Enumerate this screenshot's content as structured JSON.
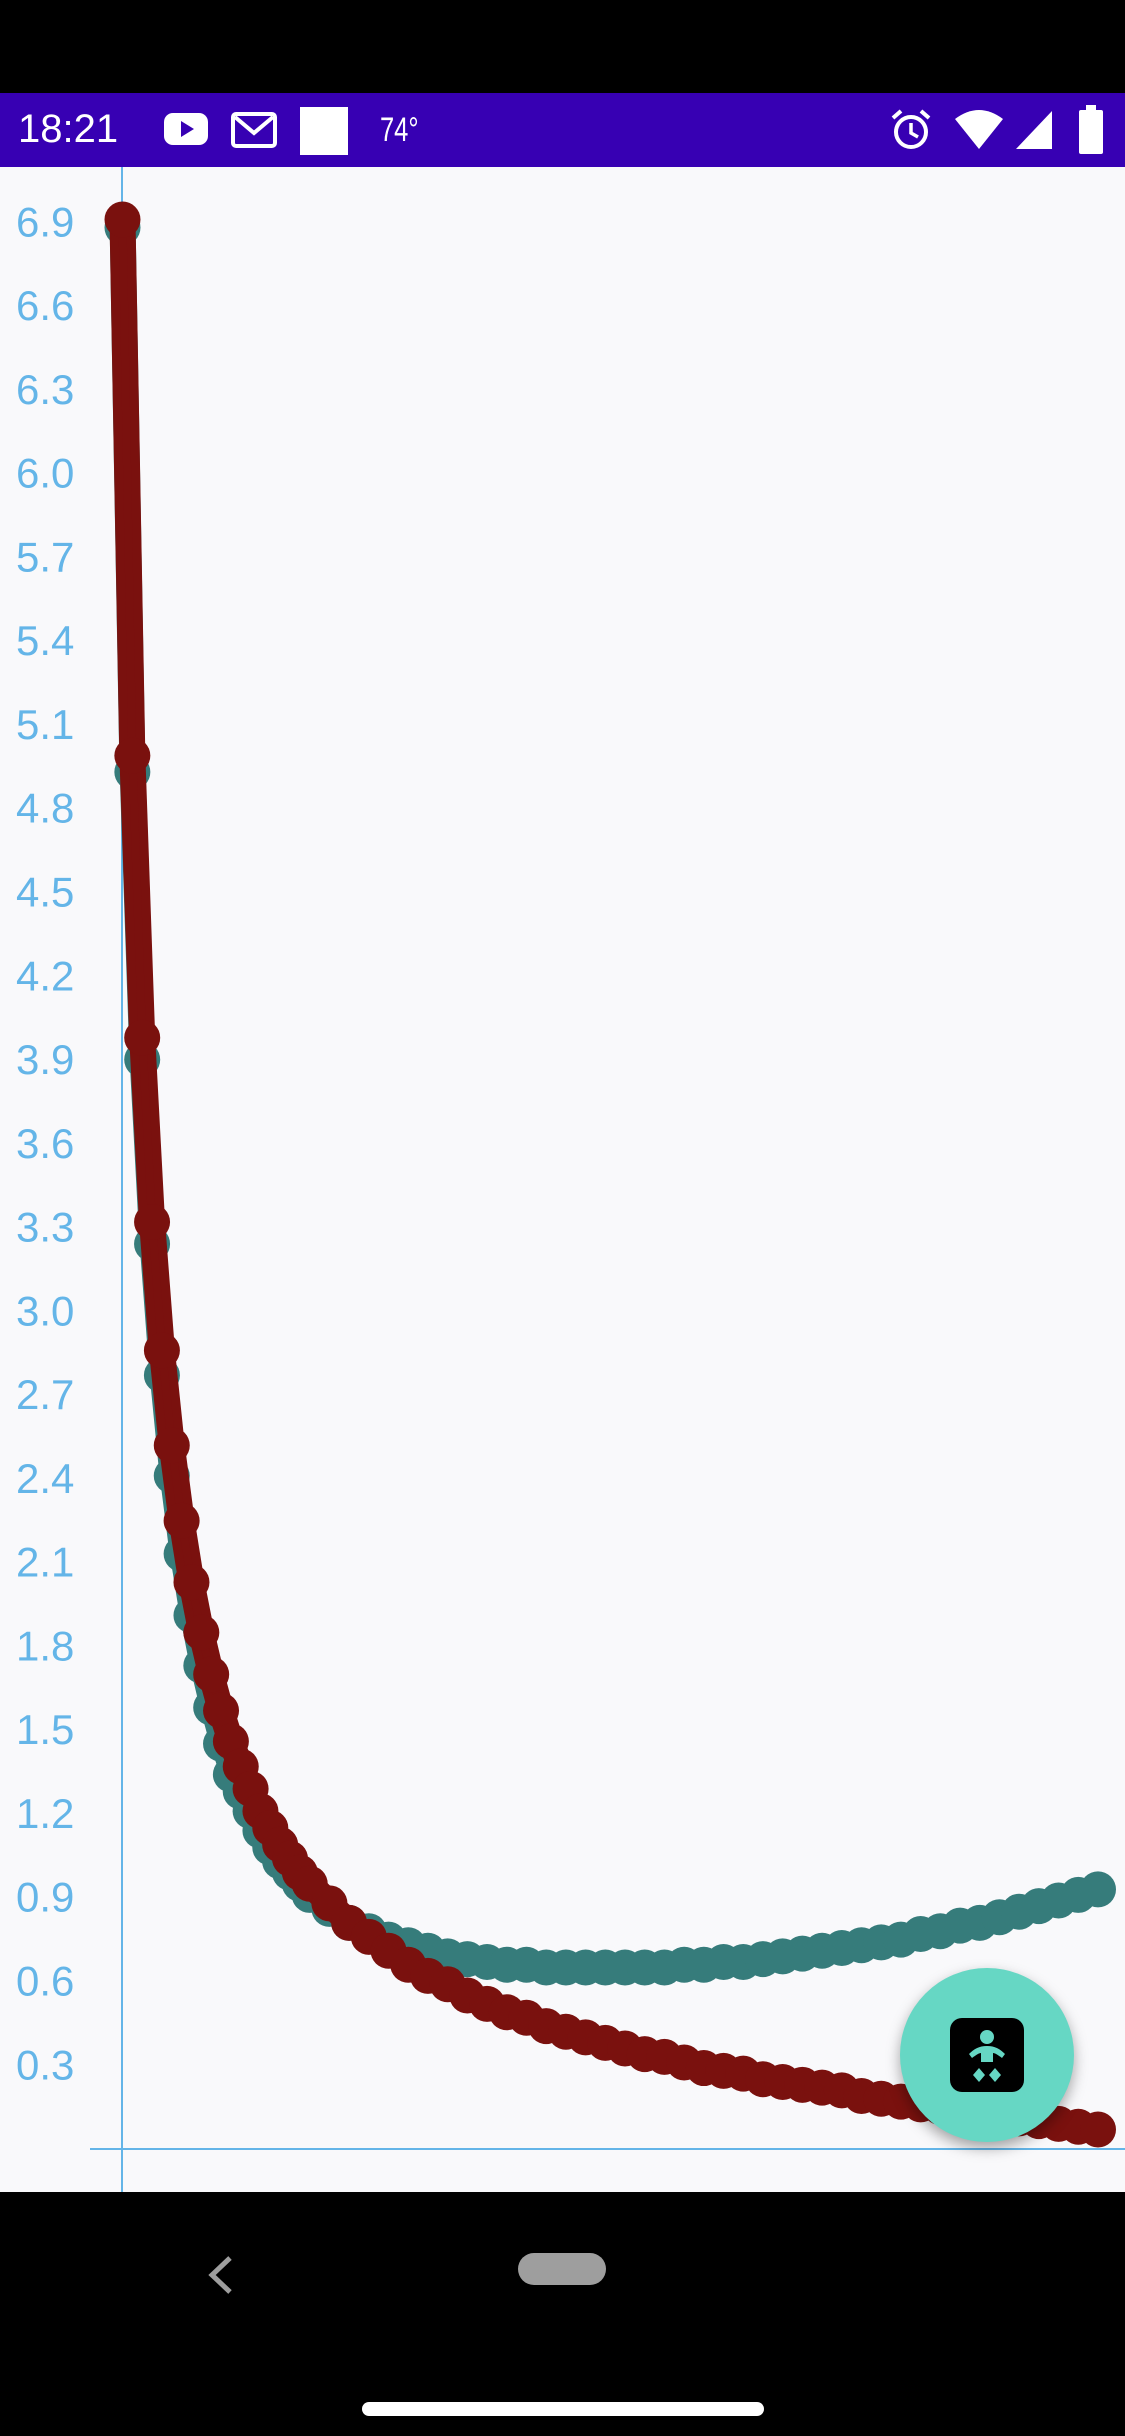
{
  "status_bar": {
    "time": "18:21",
    "temperature": "74°",
    "background": "#3700b3",
    "left_icons": [
      "youtube-icon",
      "gmail-icon",
      "white-square-icon"
    ],
    "right_icons": [
      "alarm-icon",
      "wifi-icon",
      "signal-icon",
      "battery-icon"
    ]
  },
  "fab": {
    "icon": "baby-icon",
    "color": "#66d7c4"
  },
  "navigation": {
    "icons": [
      "back-icon",
      "home-pill-icon",
      "gesture-handle-icon"
    ]
  },
  "chart_data": {
    "type": "scatter",
    "title": "",
    "xlabel": "",
    "ylabel": "",
    "y_ticks": [
      "0.3",
      "0.6",
      "0.9",
      "1.2",
      "1.5",
      "1.8",
      "2.1",
      "2.4",
      "2.7",
      "3.0",
      "3.3",
      "3.6",
      "3.9",
      "4.2",
      "4.5",
      "4.8",
      "5.1",
      "5.4",
      "5.7",
      "6.0",
      "6.3",
      "6.6",
      "6.9"
    ],
    "ylim": [
      -0.05,
      6.98
    ],
    "xlim": [
      0.95,
      100.0
    ],
    "axis_color": "#64b5e8",
    "grid": false,
    "series": [
      {
        "color": "#367c7b",
        "x": [
          1,
          2,
          3,
          4,
          5,
          6,
          7,
          8,
          9,
          10,
          11,
          12,
          13,
          14,
          15,
          16,
          17,
          18,
          19,
          20,
          22,
          24,
          26,
          28,
          30,
          32,
          34,
          36,
          38,
          40,
          42,
          44,
          46,
          48,
          50,
          52,
          54,
          56,
          58,
          60,
          62,
          64,
          66,
          68,
          70,
          72,
          74,
          76,
          78,
          80,
          82,
          84,
          86,
          88,
          90,
          92,
          94,
          96,
          98,
          100
        ],
        "y": [
          6.91,
          4.96,
          3.93,
          3.27,
          2.8,
          2.44,
          2.16,
          1.94,
          1.76,
          1.61,
          1.48,
          1.37,
          1.28,
          1.21,
          1.14,
          1.08,
          1.03,
          0.99,
          0.95,
          0.91,
          0.86,
          0.81,
          0.78,
          0.75,
          0.73,
          0.71,
          0.69,
          0.68,
          0.67,
          0.66,
          0.66,
          0.65,
          0.65,
          0.65,
          0.65,
          0.65,
          0.65,
          0.65,
          0.66,
          0.66,
          0.67,
          0.67,
          0.68,
          0.69,
          0.7,
          0.71,
          0.72,
          0.73,
          0.74,
          0.75,
          0.77,
          0.78,
          0.8,
          0.81,
          0.83,
          0.85,
          0.87,
          0.89,
          0.91,
          0.93
        ]
      },
      {
        "color": "#7a110e",
        "x": [
          1,
          2,
          3,
          4,
          5,
          6,
          7,
          8,
          9,
          10,
          11,
          12,
          13,
          14,
          15,
          16,
          17,
          18,
          19,
          20,
          22,
          24,
          26,
          28,
          30,
          32,
          34,
          36,
          38,
          40,
          42,
          44,
          46,
          48,
          50,
          52,
          54,
          56,
          58,
          60,
          62,
          64,
          66,
          68,
          70,
          72,
          74,
          76,
          78,
          80,
          82,
          84,
          86,
          88,
          90,
          92,
          94,
          96,
          98,
          100
        ],
        "y": [
          6.91,
          4.99,
          3.98,
          3.32,
          2.86,
          2.52,
          2.25,
          2.03,
          1.85,
          1.7,
          1.57,
          1.46,
          1.37,
          1.29,
          1.21,
          1.15,
          1.09,
          1.04,
          0.99,
          0.95,
          0.88,
          0.81,
          0.76,
          0.71,
          0.66,
          0.62,
          0.59,
          0.55,
          0.52,
          0.49,
          0.47,
          0.44,
          0.42,
          0.4,
          0.38,
          0.36,
          0.34,
          0.33,
          0.31,
          0.29,
          0.28,
          0.27,
          0.25,
          0.24,
          0.23,
          0.22,
          0.21,
          0.19,
          0.18,
          0.17,
          0.16,
          0.15,
          0.14,
          0.13,
          0.12,
          0.11,
          0.1,
          0.09,
          0.08,
          0.07
        ]
      }
    ]
  }
}
